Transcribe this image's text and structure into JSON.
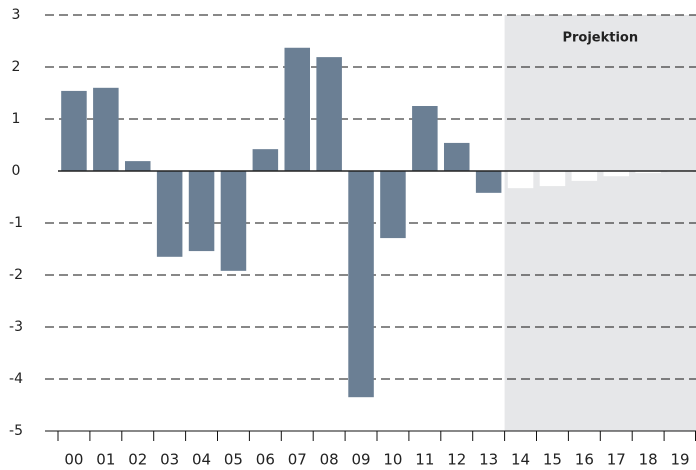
{
  "chart_data": {
    "type": "bar",
    "categories": [
      "00",
      "01",
      "02",
      "03",
      "04",
      "05",
      "06",
      "07",
      "08",
      "09",
      "10",
      "11",
      "12",
      "13",
      "14",
      "15",
      "16",
      "17",
      "18",
      "19"
    ],
    "values": [
      1.54,
      1.6,
      0.19,
      -1.65,
      -1.54,
      -1.92,
      0.42,
      2.37,
      2.19,
      -4.35,
      -1.29,
      1.25,
      0.54,
      -0.42,
      -0.33,
      -0.29,
      -0.19,
      -0.1,
      -0.04,
      -0.02
    ],
    "color": "#6b7f94",
    "ylim": [
      -5,
      3
    ],
    "yticks": [
      -5,
      -4,
      -3,
      -2,
      -1,
      0,
      1,
      2,
      3
    ],
    "grid": true,
    "annotations": [
      {
        "text": "Projektion",
        "from": "14",
        "to": "19",
        "color": "#e6e7e9",
        "bar_color": "#ffffff"
      }
    ]
  }
}
